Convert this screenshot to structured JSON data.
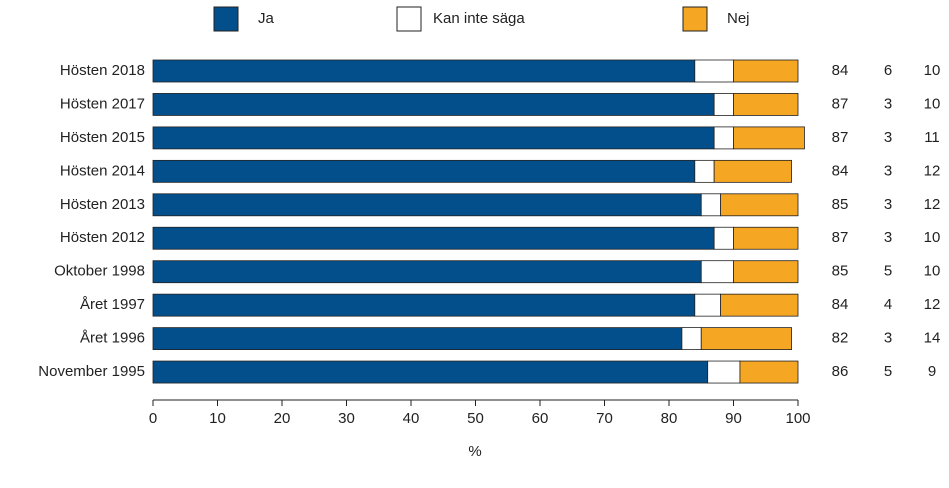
{
  "chart_data": {
    "type": "stacked_bar_horizontal",
    "x_label": "%",
    "categories": [
      "Hösten 2018",
      "Hösten 2017",
      "Hösten 2015",
      "Hösten 2014",
      "Hösten 2013",
      "Hösten 2012",
      "Oktober 1998",
      "Året 1997",
      "Året 1996",
      "November 1995"
    ],
    "series": [
      {
        "name": "Ja",
        "color": "#034f8c",
        "values": [
          84,
          87,
          87,
          84,
          85,
          87,
          85,
          84,
          82,
          86
        ]
      },
      {
        "name": "Kan inte säga",
        "color": "#ffffff",
        "values": [
          6,
          3,
          3,
          3,
          3,
          3,
          5,
          4,
          3,
          5
        ]
      },
      {
        "name": "Nej",
        "color": "#f5a623",
        "values": [
          10,
          10,
          11,
          12,
          12,
          10,
          10,
          12,
          14,
          9
        ]
      }
    ],
    "xlim": [
      0,
      100
    ],
    "xticks": [
      0,
      10,
      20,
      30,
      40,
      50,
      60,
      70,
      80,
      90,
      100
    ],
    "legend": "top"
  }
}
